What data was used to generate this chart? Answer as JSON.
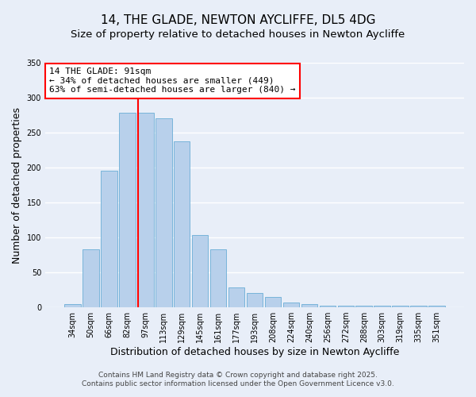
{
  "title": "14, THE GLADE, NEWTON AYCLIFFE, DL5 4DG",
  "subtitle": "Size of property relative to detached houses in Newton Aycliffe",
  "xlabel": "Distribution of detached houses by size in Newton Aycliffe",
  "ylabel": "Number of detached properties",
  "bar_labels": [
    "34sqm",
    "50sqm",
    "66sqm",
    "82sqm",
    "97sqm",
    "113sqm",
    "129sqm",
    "145sqm",
    "161sqm",
    "177sqm",
    "193sqm",
    "208sqm",
    "224sqm",
    "240sqm",
    "256sqm",
    "272sqm",
    "288sqm",
    "303sqm",
    "319sqm",
    "335sqm",
    "351sqm"
  ],
  "bar_values": [
    5,
    83,
    196,
    278,
    278,
    270,
    238,
    104,
    83,
    28,
    20,
    15,
    7,
    5,
    2,
    2,
    2,
    2,
    2,
    2,
    2
  ],
  "bar_color": "#b8d0eb",
  "bar_edge_color": "#6aaed6",
  "bg_color": "#e8eef8",
  "grid_color": "#ffffff",
  "vline_label": "14 THE GLADE: 91sqm",
  "annotation_line1": "← 34% of detached houses are smaller (449)",
  "annotation_line2": "63% of semi-detached houses are larger (840) →",
  "ylim": [
    0,
    350
  ],
  "yticks": [
    0,
    50,
    100,
    150,
    200,
    250,
    300,
    350
  ],
  "footer1": "Contains HM Land Registry data © Crown copyright and database right 2025.",
  "footer2": "Contains public sector information licensed under the Open Government Licence v3.0.",
  "title_fontsize": 11,
  "subtitle_fontsize": 9.5,
  "axis_label_fontsize": 9,
  "tick_fontsize": 7,
  "footer_fontsize": 6.5,
  "vline_pos": 3.6
}
